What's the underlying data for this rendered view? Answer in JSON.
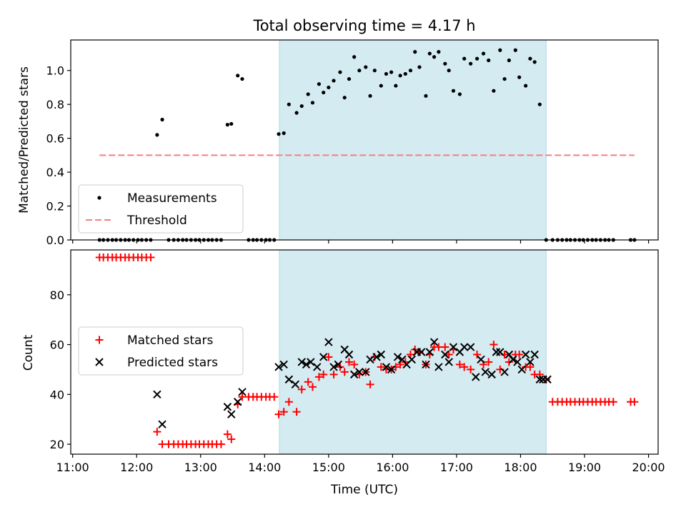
{
  "chart_data": {
    "type": "scatter",
    "title": "Total observing time = 4.17 h",
    "xlabel": "Time (UTC)",
    "xlim_hours": [
      10.97,
      20.15
    ],
    "xticks": [
      {
        "value": 11,
        "label": "11:00"
      },
      {
        "value": 12,
        "label": "12:00"
      },
      {
        "value": 13,
        "label": "13:00"
      },
      {
        "value": 14,
        "label": "14:00"
      },
      {
        "value": 15,
        "label": "15:00"
      },
      {
        "value": 16,
        "label": "16:00"
      },
      {
        "value": 17,
        "label": "17:00"
      },
      {
        "value": 18,
        "label": "18:00"
      },
      {
        "value": 19,
        "label": "19:00"
      },
      {
        "value": 20,
        "label": "20:00"
      }
    ],
    "observing_window_hours": [
      14.23,
      18.4
    ],
    "observing_window_color": "#d4ebf1",
    "panels": [
      {
        "ylabel": "Matched/Predicted stars",
        "ylim": [
          0,
          1.18
        ],
        "yticks": [
          {
            "value": 0.0,
            "label": "0.0"
          },
          {
            "value": 0.2,
            "label": "0.2"
          },
          {
            "value": 0.4,
            "label": "0.4"
          },
          {
            "value": 0.6,
            "label": "0.6"
          },
          {
            "value": 0.8,
            "label": "0.8"
          },
          {
            "value": 1.0,
            "label": "1.0"
          }
        ],
        "legend": {
          "location": "lower-left",
          "entries": [
            "Measurements",
            "Threshold"
          ]
        },
        "series": [
          {
            "name": "Measurements",
            "marker": "dot",
            "color": "#000000",
            "x": [
              11.42,
              11.48,
              11.55,
              11.62,
              11.68,
              11.75,
              11.82,
              11.88,
              11.95,
              12.02,
              12.08,
              12.15,
              12.22,
              12.32,
              12.4,
              12.5,
              12.58,
              12.65,
              12.72,
              12.78,
              12.85,
              12.92,
              12.98,
              13.05,
              13.12,
              13.18,
              13.25,
              13.32,
              13.42,
              13.48,
              13.58,
              13.65,
              13.75,
              13.82,
              13.88,
              13.95,
              14.02,
              14.08,
              14.15,
              14.22,
              14.3,
              14.38,
              14.5,
              14.58,
              14.68,
              14.75,
              14.85,
              14.92,
              15.0,
              15.08,
              15.18,
              15.25,
              15.32,
              15.4,
              15.48,
              15.58,
              15.65,
              15.72,
              15.82,
              15.9,
              15.98,
              16.05,
              16.12,
              16.2,
              16.28,
              16.35,
              16.42,
              16.52,
              16.58,
              16.65,
              16.72,
              16.82,
              16.88,
              16.95,
              17.05,
              17.12,
              17.22,
              17.32,
              17.42,
              17.5,
              17.58,
              17.68,
              17.75,
              17.82,
              17.92,
              17.98,
              18.08,
              18.15,
              18.22,
              18.3,
              18.4,
              18.5,
              18.58,
              18.65,
              18.72,
              18.78,
              18.85,
              18.92,
              18.98,
              19.05,
              19.12,
              19.18,
              19.25,
              19.32,
              19.38,
              19.45,
              19.72,
              19.78
            ],
            "y": [
              0,
              0,
              0,
              0,
              0,
              0,
              0,
              0,
              0,
              0,
              0,
              0,
              0,
              0.62,
              0.71,
              0,
              0,
              0,
              0,
              0,
              0,
              0,
              0,
              0,
              0,
              0,
              0,
              0,
              0.68,
              0.685,
              0.97,
              0.95,
              0,
              0,
              0,
              0,
              0,
              0,
              0,
              0.625,
              0.63,
              0.8,
              0.75,
              0.79,
              0.86,
              0.81,
              0.92,
              0.87,
              0.9,
              0.94,
              0.99,
              0.84,
              0.95,
              1.08,
              1.0,
              1.02,
              0.85,
              1.0,
              0.91,
              0.98,
              0.99,
              0.91,
              0.97,
              0.98,
              1.0,
              1.11,
              1.02,
              0.85,
              1.1,
              1.08,
              1.11,
              1.04,
              1.0,
              0.88,
              0.86,
              1.07,
              1.04,
              1.07,
              1.1,
              1.06,
              0.88,
              1.12,
              0.95,
              1.06,
              1.12,
              0.96,
              0.91,
              1.07,
              1.05,
              0.8,
              0,
              0,
              0,
              0,
              0,
              0,
              0,
              0,
              0,
              0,
              0,
              0,
              0,
              0,
              0,
              0,
              0,
              0
            ]
          },
          {
            "name": "Threshold",
            "style": "dashed",
            "color": "#f47f7f",
            "x": [
              11.42,
              19.78
            ],
            "y": [
              0.5,
              0.5
            ]
          }
        ]
      },
      {
        "ylabel": "Count",
        "ylim": [
          16,
          98
        ],
        "yticks": [
          {
            "value": 20,
            "label": "20"
          },
          {
            "value": 40,
            "label": "40"
          },
          {
            "value": 60,
            "label": "60"
          },
          {
            "value": 80,
            "label": "80"
          }
        ],
        "legend": {
          "location": "center-left",
          "entries": [
            "Matched stars",
            "Predicted stars"
          ]
        },
        "series": [
          {
            "name": "Matched stars",
            "marker": "plus",
            "color": "#ff0000",
            "x": [
              11.42,
              11.48,
              11.55,
              11.62,
              11.68,
              11.75,
              11.82,
              11.88,
              11.95,
              12.02,
              12.08,
              12.15,
              12.22,
              12.32,
              12.4,
              12.5,
              12.58,
              12.65,
              12.72,
              12.78,
              12.85,
              12.92,
              12.98,
              13.05,
              13.12,
              13.18,
              13.25,
              13.32,
              13.42,
              13.48,
              13.58,
              13.65,
              13.75,
              13.82,
              13.88,
              13.95,
              14.02,
              14.08,
              14.15,
              14.22,
              14.3,
              14.38,
              14.5,
              14.58,
              14.68,
              14.75,
              14.85,
              14.92,
              15.0,
              15.08,
              15.18,
              15.25,
              15.32,
              15.4,
              15.48,
              15.58,
              15.65,
              15.72,
              15.82,
              15.9,
              15.98,
              16.05,
              16.12,
              16.2,
              16.28,
              16.35,
              16.42,
              16.52,
              16.58,
              16.65,
              16.72,
              16.82,
              16.88,
              16.95,
              17.05,
              17.12,
              17.22,
              17.32,
              17.42,
              17.5,
              17.58,
              17.68,
              17.75,
              17.82,
              17.92,
              17.98,
              18.08,
              18.15,
              18.22,
              18.3,
              18.4,
              18.5,
              18.58,
              18.65,
              18.72,
              18.78,
              18.85,
              18.92,
              18.98,
              19.05,
              19.12,
              19.18,
              19.25,
              19.32,
              19.38,
              19.45,
              19.72,
              19.78
            ],
            "y": [
              95,
              95,
              95,
              95,
              95,
              95,
              95,
              95,
              95,
              95,
              95,
              95,
              95,
              25,
              20,
              20,
              20,
              20,
              20,
              20,
              20,
              20,
              20,
              20,
              20,
              20,
              20,
              20,
              24,
              22,
              36,
              39,
              39,
              39,
              39,
              39,
              39,
              39,
              39,
              32,
              33,
              37,
              33,
              42,
              45,
              43,
              47,
              48,
              55,
              48,
              51,
              49,
              53,
              52,
              48,
              49,
              44,
              55,
              51,
              50,
              50,
              51,
              52,
              53,
              56,
              58,
              57,
              52,
              56,
              59,
              59,
              59,
              56,
              58,
              52,
              51,
              50,
              56,
              52,
              53,
              60,
              50,
              56,
              53,
              56,
              56,
              51,
              51,
              48,
              48,
              46,
              37,
              37,
              37,
              37,
              37,
              37,
              37,
              37,
              37,
              37,
              37,
              37,
              37,
              37,
              37,
              37,
              37
            ]
          },
          {
            "name": "Predicted stars",
            "marker": "x",
            "color": "#000000",
            "x": [
              12.32,
              12.4,
              13.42,
              13.48,
              13.58,
              13.65,
              14.22,
              14.3,
              14.38,
              14.48,
              14.58,
              14.65,
              14.72,
              14.82,
              14.92,
              15.0,
              15.08,
              15.15,
              15.25,
              15.32,
              15.4,
              15.48,
              15.58,
              15.65,
              15.75,
              15.82,
              15.9,
              15.98,
              16.08,
              16.15,
              16.22,
              16.3,
              16.38,
              16.45,
              16.52,
              16.58,
              16.65,
              16.72,
              16.82,
              16.88,
              16.95,
              17.05,
              17.12,
              17.22,
              17.3,
              17.38,
              17.45,
              17.55,
              17.62,
              17.68,
              17.75,
              17.82,
              17.88,
              17.95,
              18.02,
              18.08,
              18.15,
              18.22,
              18.3,
              18.35,
              18.42
            ],
            "y": [
              40,
              28,
              35,
              32,
              37,
              41,
              51,
              52,
              46,
              44,
              53,
              52,
              53,
              51,
              55,
              61,
              51,
              52,
              58,
              56,
              48,
              49,
              49,
              54,
              55,
              56,
              51,
              50,
              55,
              54,
              52,
              54,
              57,
              57,
              52,
              57,
              61,
              51,
              56,
              53,
              59,
              57,
              59,
              59,
              47,
              54,
              49,
              48,
              57,
              57,
              49,
              56,
              54,
              53,
              50,
              56,
              53,
              56,
              46,
              46,
              46
            ]
          }
        ]
      }
    ]
  }
}
